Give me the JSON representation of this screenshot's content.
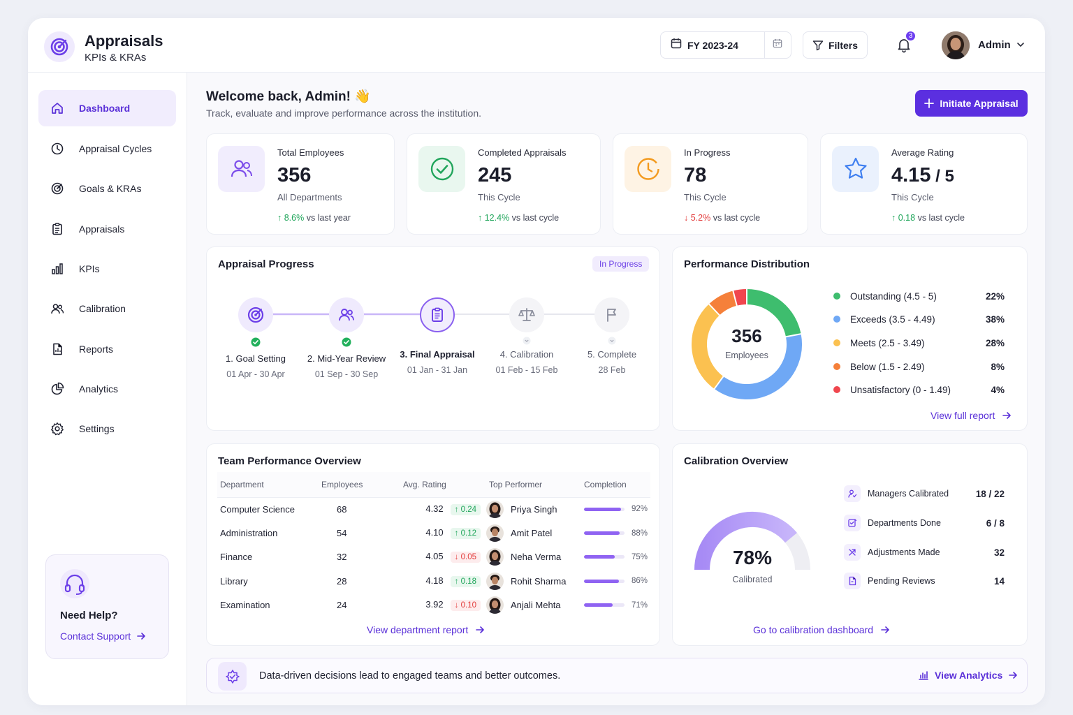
{
  "app": {
    "title": "Appraisals",
    "subtitle": "KPIs & KRAs"
  },
  "header": {
    "fiscal_year": "FY 2023-24",
    "filters_label": "Filters",
    "notification_count": "3",
    "user_name": "Admin"
  },
  "sidebar": {
    "items": [
      {
        "label": "Dashboard",
        "icon": "home-icon",
        "active": true
      },
      {
        "label": "Appraisal Cycles",
        "icon": "clock-icon"
      },
      {
        "label": "Goals & KRAs",
        "icon": "target-icon"
      },
      {
        "label": "Appraisals",
        "icon": "clipboard-icon"
      },
      {
        "label": "KPIs",
        "icon": "bar-chart-icon"
      },
      {
        "label": "Calibration",
        "icon": "users-icon"
      },
      {
        "label": "Reports",
        "icon": "report-icon"
      },
      {
        "label": "Analytics",
        "icon": "pie-chart-icon"
      },
      {
        "label": "Settings",
        "icon": "gear-icon"
      }
    ],
    "help": {
      "title": "Need Help?",
      "link": "Contact Support"
    }
  },
  "welcome": {
    "title": "Welcome back, Admin! 👋",
    "subtitle": "Track, evaluate and improve performance across the institution.",
    "cta": "Initiate Appraisal"
  },
  "stats": [
    {
      "label": "Total Employees",
      "value": "356",
      "value_suffix": "",
      "sub": "All Departments",
      "trend": "8.6%",
      "trend_dir": "up",
      "trend_text": "vs last year",
      "color": "#7c4dea",
      "bg": "#f1edfd"
    },
    {
      "label": "Completed Appraisals",
      "value": "245",
      "value_suffix": "",
      "sub": "This Cycle",
      "trend": "12.4%",
      "trend_dir": "up",
      "trend_text": "vs last cycle",
      "color": "#22a55c",
      "bg": "#e9f7ef"
    },
    {
      "label": "In Progress",
      "value": "78",
      "value_suffix": "",
      "sub": "This Cycle",
      "trend": "5.2%",
      "trend_dir": "down",
      "trend_text": "vs last cycle",
      "color": "#f39a1e",
      "bg": "#fef3e4"
    },
    {
      "label": "Average Rating",
      "value": "4.15",
      "value_suffix": " / 5",
      "sub": "This Cycle",
      "trend": "0.18",
      "trend_dir": "up",
      "trend_text": "vs last cycle",
      "color": "#3f7ff0",
      "bg": "#eaf1fd"
    }
  ],
  "progress": {
    "title": "Appraisal Progress",
    "badge": "In Progress",
    "steps": [
      {
        "name": "1. Goal Setting",
        "date": "01 Apr - 30 Apr",
        "status": "done"
      },
      {
        "name": "2. Mid-Year Review",
        "date": "01 Sep - 30 Sep",
        "status": "done"
      },
      {
        "name": "3. Final Appraisal",
        "date": "01 Jan - 31 Jan",
        "status": "current"
      },
      {
        "name": "4. Calibration",
        "date": "01 Feb - 15 Feb",
        "status": "pending"
      },
      {
        "name": "5. Complete",
        "date": "28 Feb",
        "status": "pending"
      }
    ]
  },
  "distribution": {
    "title": "Performance Distribution",
    "center_value": "356",
    "center_label": "Employees",
    "link": "View full report",
    "chart_data": {
      "type": "pie",
      "categories": [
        "Outstanding (4.5 - 5)",
        "Exceeds (3.5 - 4.49)",
        "Meets (2.5 - 3.49)",
        "Below (1.5 - 2.49)",
        "Unsatisfactory (0 - 1.49)"
      ],
      "values": [
        22,
        38,
        28,
        8,
        4
      ],
      "labels": [
        "22%",
        "38%",
        "28%",
        "8%",
        "4%"
      ],
      "colors": [
        "#3ebd6e",
        "#6fa8f5",
        "#fbc150",
        "#f5803a",
        "#f0464e"
      ]
    }
  },
  "team": {
    "title": "Team Performance Overview",
    "columns": [
      "Department",
      "Employees",
      "Avg. Rating",
      "Top Performer",
      "Completion"
    ],
    "rows": [
      {
        "dept": "Computer Science",
        "employees": "68",
        "rating": "4.32",
        "delta": "0.24",
        "dir": "up",
        "performer": "Priya Singh",
        "gender": "f",
        "completion": 92,
        "completion_label": "92%"
      },
      {
        "dept": "Administration",
        "employees": "54",
        "rating": "4.10",
        "delta": "0.12",
        "dir": "up",
        "performer": "Amit Patel",
        "gender": "m",
        "completion": 88,
        "completion_label": "88%"
      },
      {
        "dept": "Finance",
        "employees": "32",
        "rating": "4.05",
        "delta": "0.05",
        "dir": "down",
        "performer": "Neha Verma",
        "gender": "f",
        "completion": 75,
        "completion_label": "75%"
      },
      {
        "dept": "Library",
        "employees": "28",
        "rating": "4.18",
        "delta": "0.18",
        "dir": "up",
        "performer": "Rohit Sharma",
        "gender": "m",
        "completion": 86,
        "completion_label": "86%"
      },
      {
        "dept": "Examination",
        "employees": "24",
        "rating": "3.92",
        "delta": "0.10",
        "dir": "down",
        "performer": "Anjali Mehta",
        "gender": "f",
        "completion": 71,
        "completion_label": "71%"
      }
    ],
    "link": "View department report"
  },
  "calibration": {
    "title": "Calibration Overview",
    "percent": 78,
    "percent_label": "78%",
    "caption": "Calibrated",
    "items": [
      {
        "name": "Managers Calibrated",
        "value": "18 / 22",
        "icon": "user-check-icon"
      },
      {
        "name": "Departments Done",
        "value": "6 / 8",
        "icon": "edit-check-icon"
      },
      {
        "name": "Adjustments Made",
        "value": "32",
        "icon": "arrows-icon"
      },
      {
        "name": "Pending Reviews",
        "value": "14",
        "icon": "document-icon"
      }
    ],
    "link": "Go to calibration dashboard"
  },
  "banner": {
    "text": "Data-driven decisions lead to engaged teams and better outcomes.",
    "link": "View Analytics"
  }
}
